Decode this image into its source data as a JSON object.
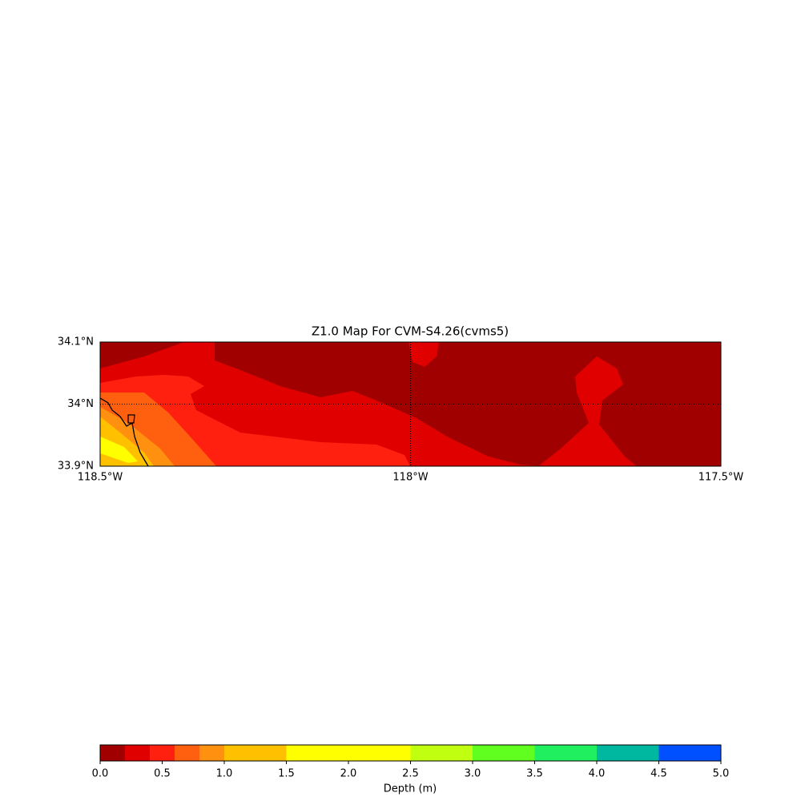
{
  "chart_data": {
    "type": "map",
    "title": "Z1.0 Map For CVM-S4.26(cvms5)",
    "xlim": [
      -118.5,
      -117.5
    ],
    "ylim": [
      33.9,
      34.1
    ],
    "xticks": [
      {
        "value": -118.5,
        "label": "118.5°W"
      },
      {
        "value": -118.0,
        "label": "118°W"
      },
      {
        "value": -117.5,
        "label": "117.5°W"
      }
    ],
    "yticks": [
      {
        "value": 34.1,
        "label": "34.1°N"
      },
      {
        "value": 34.0,
        "label": "34°N"
      },
      {
        "value": 33.9,
        "label": "33.9°N"
      }
    ],
    "grid": true,
    "colorbar": {
      "label": "Depth (m)",
      "bounds": [
        0,
        0.2,
        0.4,
        0.6,
        0.8,
        1.0,
        1.5,
        2.5,
        3.0,
        3.5,
        4.0,
        4.5,
        5.0
      ],
      "colors": [
        "#a00000",
        "#e00000",
        "#ff2010",
        "#ff6010",
        "#ff9010",
        "#ffc000",
        "#ffff00",
        "#c0ff10",
        "#60ff20",
        "#20f060",
        "#00b8a0",
        "#0050ff"
      ],
      "lim": [
        0,
        5
      ],
      "ticks": [
        {
          "value": 0,
          "label": "0.0"
        },
        {
          "value": 0.5,
          "label": "0.5"
        },
        {
          "value": 1,
          "label": "1.0"
        },
        {
          "value": 1.5,
          "label": "1.5"
        },
        {
          "value": 2,
          "label": "2.0"
        },
        {
          "value": 2.5,
          "label": "2.5"
        },
        {
          "value": 3,
          "label": "3.0"
        },
        {
          "value": 3.5,
          "label": "3.5"
        },
        {
          "value": 4,
          "label": "4.0"
        },
        {
          "value": 4.5,
          "label": "4.5"
        },
        {
          "value": 5,
          "label": "5.0"
        }
      ]
    }
  }
}
